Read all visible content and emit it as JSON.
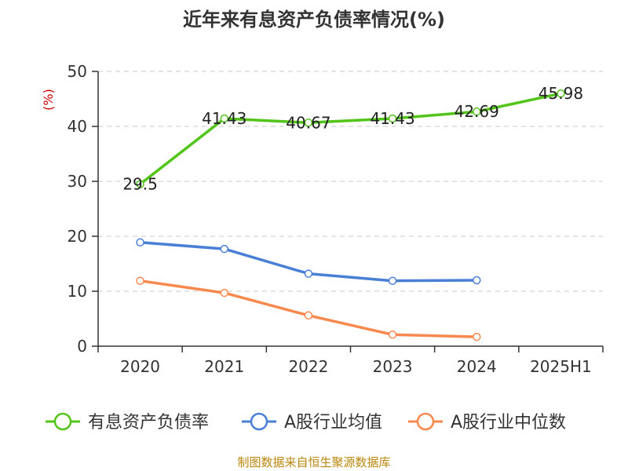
{
  "chart_data": {
    "type": "line",
    "title": "近年来有息资产负债率情况(%)",
    "ylabel": "(%)",
    "xlabel": "",
    "categories": [
      "2020",
      "2021",
      "2022",
      "2023",
      "2024",
      "2025H1"
    ],
    "ylim": [
      0,
      50
    ],
    "yticks": [
      0,
      10,
      20,
      30,
      40,
      50
    ],
    "grid": true,
    "legend_position": "bottom",
    "series": [
      {
        "name": "有息资产负债率",
        "color": "#52c41a",
        "values": [
          29.5,
          41.43,
          40.67,
          41.43,
          42.69,
          45.98
        ],
        "labels": [
          "29.5",
          "41.43",
          "40.67",
          "41.43",
          "42.69",
          "45.98"
        ],
        "show_labels": true
      },
      {
        "name": "A股行业均值",
        "color": "#4a7fd6",
        "values": [
          18.9,
          17.7,
          13.2,
          11.9,
          12.0,
          null
        ],
        "show_labels": false
      },
      {
        "name": "A股行业中位数",
        "color": "#f7894f",
        "values": [
          11.9,
          9.7,
          5.6,
          2.1,
          1.7,
          null
        ],
        "show_labels": false
      }
    ],
    "source": "制图数据来自恒生聚源数据库"
  }
}
